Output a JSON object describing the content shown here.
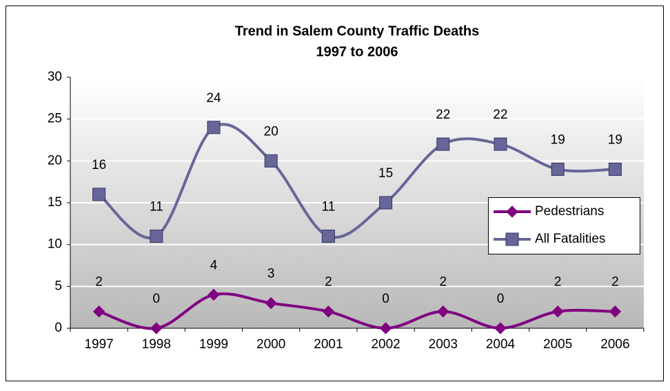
{
  "chart_data": {
    "type": "line",
    "title": [
      "Trend in Salem County Traffic Deaths",
      "1997 to 2006"
    ],
    "categories": [
      "1997",
      "1998",
      "1999",
      "2000",
      "2001",
      "2002",
      "2003",
      "2004",
      "2005",
      "2006"
    ],
    "series": [
      {
        "name": "Pedestrians",
        "color": "#800080",
        "marker": "diamond",
        "values": [
          2,
          0,
          4,
          3,
          2,
          0,
          2,
          0,
          2,
          2
        ]
      },
      {
        "name": "All Fatalities",
        "color": "#666699",
        "marker": "square",
        "values": [
          16,
          11,
          24,
          20,
          11,
          15,
          22,
          22,
          19,
          19
        ]
      }
    ],
    "ylim": [
      0,
      30
    ],
    "yticks": [
      0,
      5,
      10,
      15,
      20,
      25,
      30
    ],
    "grid": true,
    "smooth": true,
    "legend": "right"
  }
}
